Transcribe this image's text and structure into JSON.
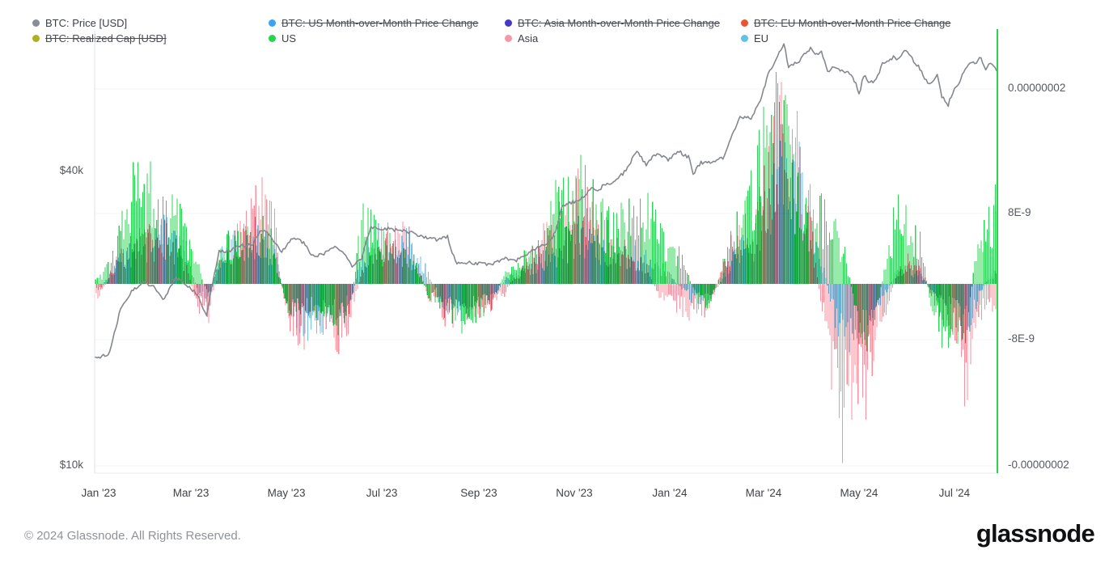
{
  "legend": {
    "row1": [
      {
        "label": "BTC: Price [USD]",
        "color": "#878E98",
        "struck": false
      },
      {
        "label": "BTC: US Month-over-Month Price Change",
        "color": "#3BA3F5",
        "struck": true
      },
      {
        "label": "BTC: Asia Month-over-Month Price Change",
        "color": "#4537C8",
        "struck": true
      },
      {
        "label": "BTC: EU Month-over-Month Price Change",
        "color": "#EA5230",
        "struck": true
      }
    ],
    "row2": [
      {
        "label": "BTC: Realized Cap [USD]",
        "color": "#AFAF1F",
        "struck": true
      },
      {
        "label": "US",
        "color": "#22D54A",
        "struck": false
      },
      {
        "label": "Asia",
        "color": "#F797A6",
        "struck": false
      },
      {
        "label": "EU",
        "color": "#62C1E5",
        "struck": false
      }
    ]
  },
  "axes": {
    "left_ticks": [
      "$40k",
      "$10k"
    ],
    "right_ticks": [
      "0.00000002",
      "8E-9",
      "-8E-9",
      "-0.00000002"
    ],
    "x_ticks": [
      {
        "label": "Jan '23",
        "day": 0
      },
      {
        "label": "Mar '23",
        "day": 59
      },
      {
        "label": "May '23",
        "day": 120
      },
      {
        "label": "Jul '23",
        "day": 181
      },
      {
        "label": "Sep '23",
        "day": 243
      },
      {
        "label": "Nov '23",
        "day": 304
      },
      {
        "label": "Jan '24",
        "day": 365
      },
      {
        "label": "Mar '24",
        "day": 425
      },
      {
        "label": "May '24",
        "day": 486
      },
      {
        "label": "Jul '24",
        "day": 547
      }
    ]
  },
  "chart_data": {
    "type": "mixed",
    "subtype": "bars+line",
    "x_range": {
      "start": "2023-01-01",
      "end": "2024-08-01",
      "days": 577
    },
    "price_axis": {
      "scale": "log",
      "ticks_usd": [
        40000,
        10000
      ],
      "side": "left"
    },
    "change_axis": {
      "scale": "linear",
      "ticks": [
        2e-08,
        8e-09,
        -8e-09,
        -2e-08
      ],
      "side": "right"
    },
    "price_line": {
      "name": "BTC: Price [USD]",
      "color": "#84888E",
      "unit": "thousand USD",
      "points_day_value": [
        [
          0,
          16.6
        ],
        [
          7,
          17.0
        ],
        [
          14,
          20.9
        ],
        [
          21,
          22.7
        ],
        [
          28,
          23.7
        ],
        [
          35,
          23.3
        ],
        [
          42,
          21.8
        ],
        [
          49,
          24.3
        ],
        [
          56,
          23.5
        ],
        [
          63,
          22.4
        ],
        [
          69,
          20.2
        ],
        [
          77,
          27.4
        ],
        [
          84,
          27.6
        ],
        [
          91,
          28.2
        ],
        [
          98,
          28.3
        ],
        [
          104,
          30.4
        ],
        [
          110,
          29.5
        ],
        [
          117,
          27.3
        ],
        [
          124,
          29.3
        ],
        [
          131,
          28.6
        ],
        [
          137,
          26.8
        ],
        [
          144,
          27.1
        ],
        [
          151,
          28.0
        ],
        [
          158,
          27.0
        ],
        [
          162,
          25.6
        ],
        [
          168,
          26.6
        ],
        [
          174,
          30.7
        ],
        [
          182,
          30.6
        ],
        [
          189,
          30.4
        ],
        [
          196,
          30.2
        ],
        [
          203,
          29.8
        ],
        [
          210,
          29.2
        ],
        [
          217,
          29.0
        ],
        [
          223,
          29.4
        ],
        [
          228,
          26.1
        ],
        [
          238,
          26.0
        ],
        [
          245,
          25.9
        ],
        [
          252,
          25.8
        ],
        [
          259,
          26.6
        ],
        [
          266,
          26.2
        ],
        [
          273,
          27.0
        ],
        [
          280,
          27.9
        ],
        [
          287,
          28.4
        ],
        [
          292,
          30.0
        ],
        [
          296,
          33.9
        ],
        [
          301,
          34.5
        ],
        [
          308,
          35.0
        ],
        [
          315,
          37.1
        ],
        [
          320,
          36.5
        ],
        [
          322,
          37.4
        ],
        [
          329,
          37.8
        ],
        [
          336,
          39.9
        ],
        [
          344,
          43.8
        ],
        [
          350,
          41.4
        ],
        [
          357,
          43.7
        ],
        [
          364,
          42.3
        ],
        [
          371,
          43.9
        ],
        [
          377,
          42.8
        ],
        [
          380,
          39.6
        ],
        [
          385,
          41.7
        ],
        [
          392,
          41.6
        ],
        [
          399,
          42.6
        ],
        [
          406,
          48.2
        ],
        [
          410,
          51.8
        ],
        [
          417,
          51.3
        ],
        [
          424,
          57.0
        ],
        [
          428,
          63.1
        ],
        [
          434,
          69.0
        ],
        [
          438,
          73.0
        ],
        [
          441,
          65.3
        ],
        [
          448,
          67.2
        ],
        [
          452,
          69.9
        ],
        [
          455,
          71.2
        ],
        [
          458,
          69.0
        ],
        [
          462,
          70.6
        ],
        [
          466,
          63.9
        ],
        [
          469,
          65.0
        ],
        [
          476,
          64.0
        ],
        [
          480,
          63.5
        ],
        [
          484,
          60.6
        ],
        [
          486,
          57.3
        ],
        [
          489,
          62.9
        ],
        [
          493,
          60.8
        ],
        [
          497,
          61.5
        ],
        [
          501,
          66.3
        ],
        [
          504,
          66.9
        ],
        [
          508,
          68.5
        ],
        [
          511,
          67.8
        ],
        [
          515,
          70.5
        ],
        [
          518,
          69.6
        ],
        [
          522,
          66.6
        ],
        [
          525,
          64.9
        ],
        [
          529,
          61.3
        ],
        [
          532,
          60.3
        ],
        [
          536,
          62.7
        ],
        [
          539,
          57.0
        ],
        [
          543,
          54.7
        ],
        [
          546,
          58.2
        ],
        [
          550,
          60.8
        ],
        [
          553,
          64.1
        ],
        [
          557,
          67.2
        ],
        [
          560,
          66.5
        ],
        [
          564,
          68.3
        ],
        [
          567,
          64.6
        ],
        [
          570,
          66.8
        ],
        [
          574,
          64.6
        ]
      ]
    },
    "bar_series": {
      "unit": "1e-9",
      "anchor_step_days": 7,
      "series": [
        {
          "name": "US",
          "color": "#2ED455",
          "weekly_values": [
            0.5,
            2,
            6,
            9.5,
            10.5,
            9,
            7,
            8,
            5,
            2,
            -1.5,
            3,
            5,
            4,
            5,
            6,
            4,
            -2,
            -3,
            -2.5,
            -3,
            -2.5,
            -4.5,
            -2,
            6.5,
            6,
            4.5,
            3.5,
            3,
            2,
            -1,
            -2,
            -3.5,
            -4,
            -3.5,
            -3,
            -2,
            1,
            2,
            3,
            4,
            6,
            9,
            10.5,
            11,
            9,
            7,
            5.5,
            6.5,
            8,
            7.5,
            6,
            4.5,
            3,
            0.5,
            -2.5,
            -1.5,
            2,
            6,
            8,
            11,
            17,
            19,
            14,
            8,
            6,
            8,
            6,
            4,
            -2,
            -6,
            -3,
            3,
            8,
            7,
            4,
            -2,
            -5,
            -5,
            -6,
            2,
            6,
            8
          ]
        },
        {
          "name": "Asia",
          "color": "#F9919F",
          "weekly_values": [
            -1.5,
            1,
            3,
            4,
            4.5,
            5,
            5,
            4,
            1.5,
            -2.5,
            -3,
            2,
            4,
            5,
            7,
            9,
            6,
            -3,
            -5,
            -5.5,
            -5,
            -4,
            -6,
            -3,
            1.5,
            3,
            4,
            4.5,
            5,
            3,
            -1.5,
            -2.5,
            -4,
            -3,
            -3,
            -2.5,
            -2,
            -1,
            1,
            2,
            3.5,
            5.5,
            8,
            9.5,
            9,
            7,
            5.5,
            4.5,
            3.5,
            2.5,
            1.5,
            -1,
            -2,
            -2.5,
            -3,
            -3,
            -1.5,
            2,
            4.5,
            5.5,
            7,
            10,
            15,
            19,
            12,
            6,
            -3,
            -9,
            -14.5,
            -12,
            -11,
            -5,
            -2,
            1.5,
            2.5,
            2,
            -1.5,
            -3,
            -4.5,
            -11,
            -4,
            -2,
            -2.5
          ]
        },
        {
          "name": "EU",
          "color": "#72C5E6",
          "weekly_values": [
            -0.5,
            1,
            3,
            3.5,
            4.5,
            5,
            5.5,
            5,
            3,
            -1,
            -2,
            3.5,
            5,
            5,
            5.5,
            5,
            3,
            -2,
            -3.5,
            -4.5,
            -4,
            -3,
            -4,
            -1.5,
            3,
            4.5,
            5.5,
            5,
            4.5,
            3.5,
            1,
            -1.5,
            -2.5,
            -3,
            -2.5,
            -2,
            -1.5,
            0.5,
            1,
            1.5,
            2,
            3,
            4,
            5,
            5.5,
            4.5,
            3.5,
            3,
            3,
            3,
            2.5,
            2,
            1,
            -0.5,
            -1.5,
            -2,
            -1.5,
            1,
            3,
            4,
            5.5,
            8,
            12,
            15,
            13,
            7,
            2,
            -3,
            -5.5,
            -6.5,
            -5,
            -3,
            -0.5,
            2,
            1.5,
            1,
            -1,
            -2,
            -3,
            -5,
            -2,
            0.5,
            1.5
          ]
        }
      ]
    },
    "cursor_line": {
      "color": "#2FD24F",
      "position": "right-edge"
    },
    "grid": "faint-horizontal",
    "legend_position": "top"
  },
  "footer": {
    "copyright": "© 2024 Glassnode. All Rights Reserved.",
    "brand": "glassnode"
  }
}
